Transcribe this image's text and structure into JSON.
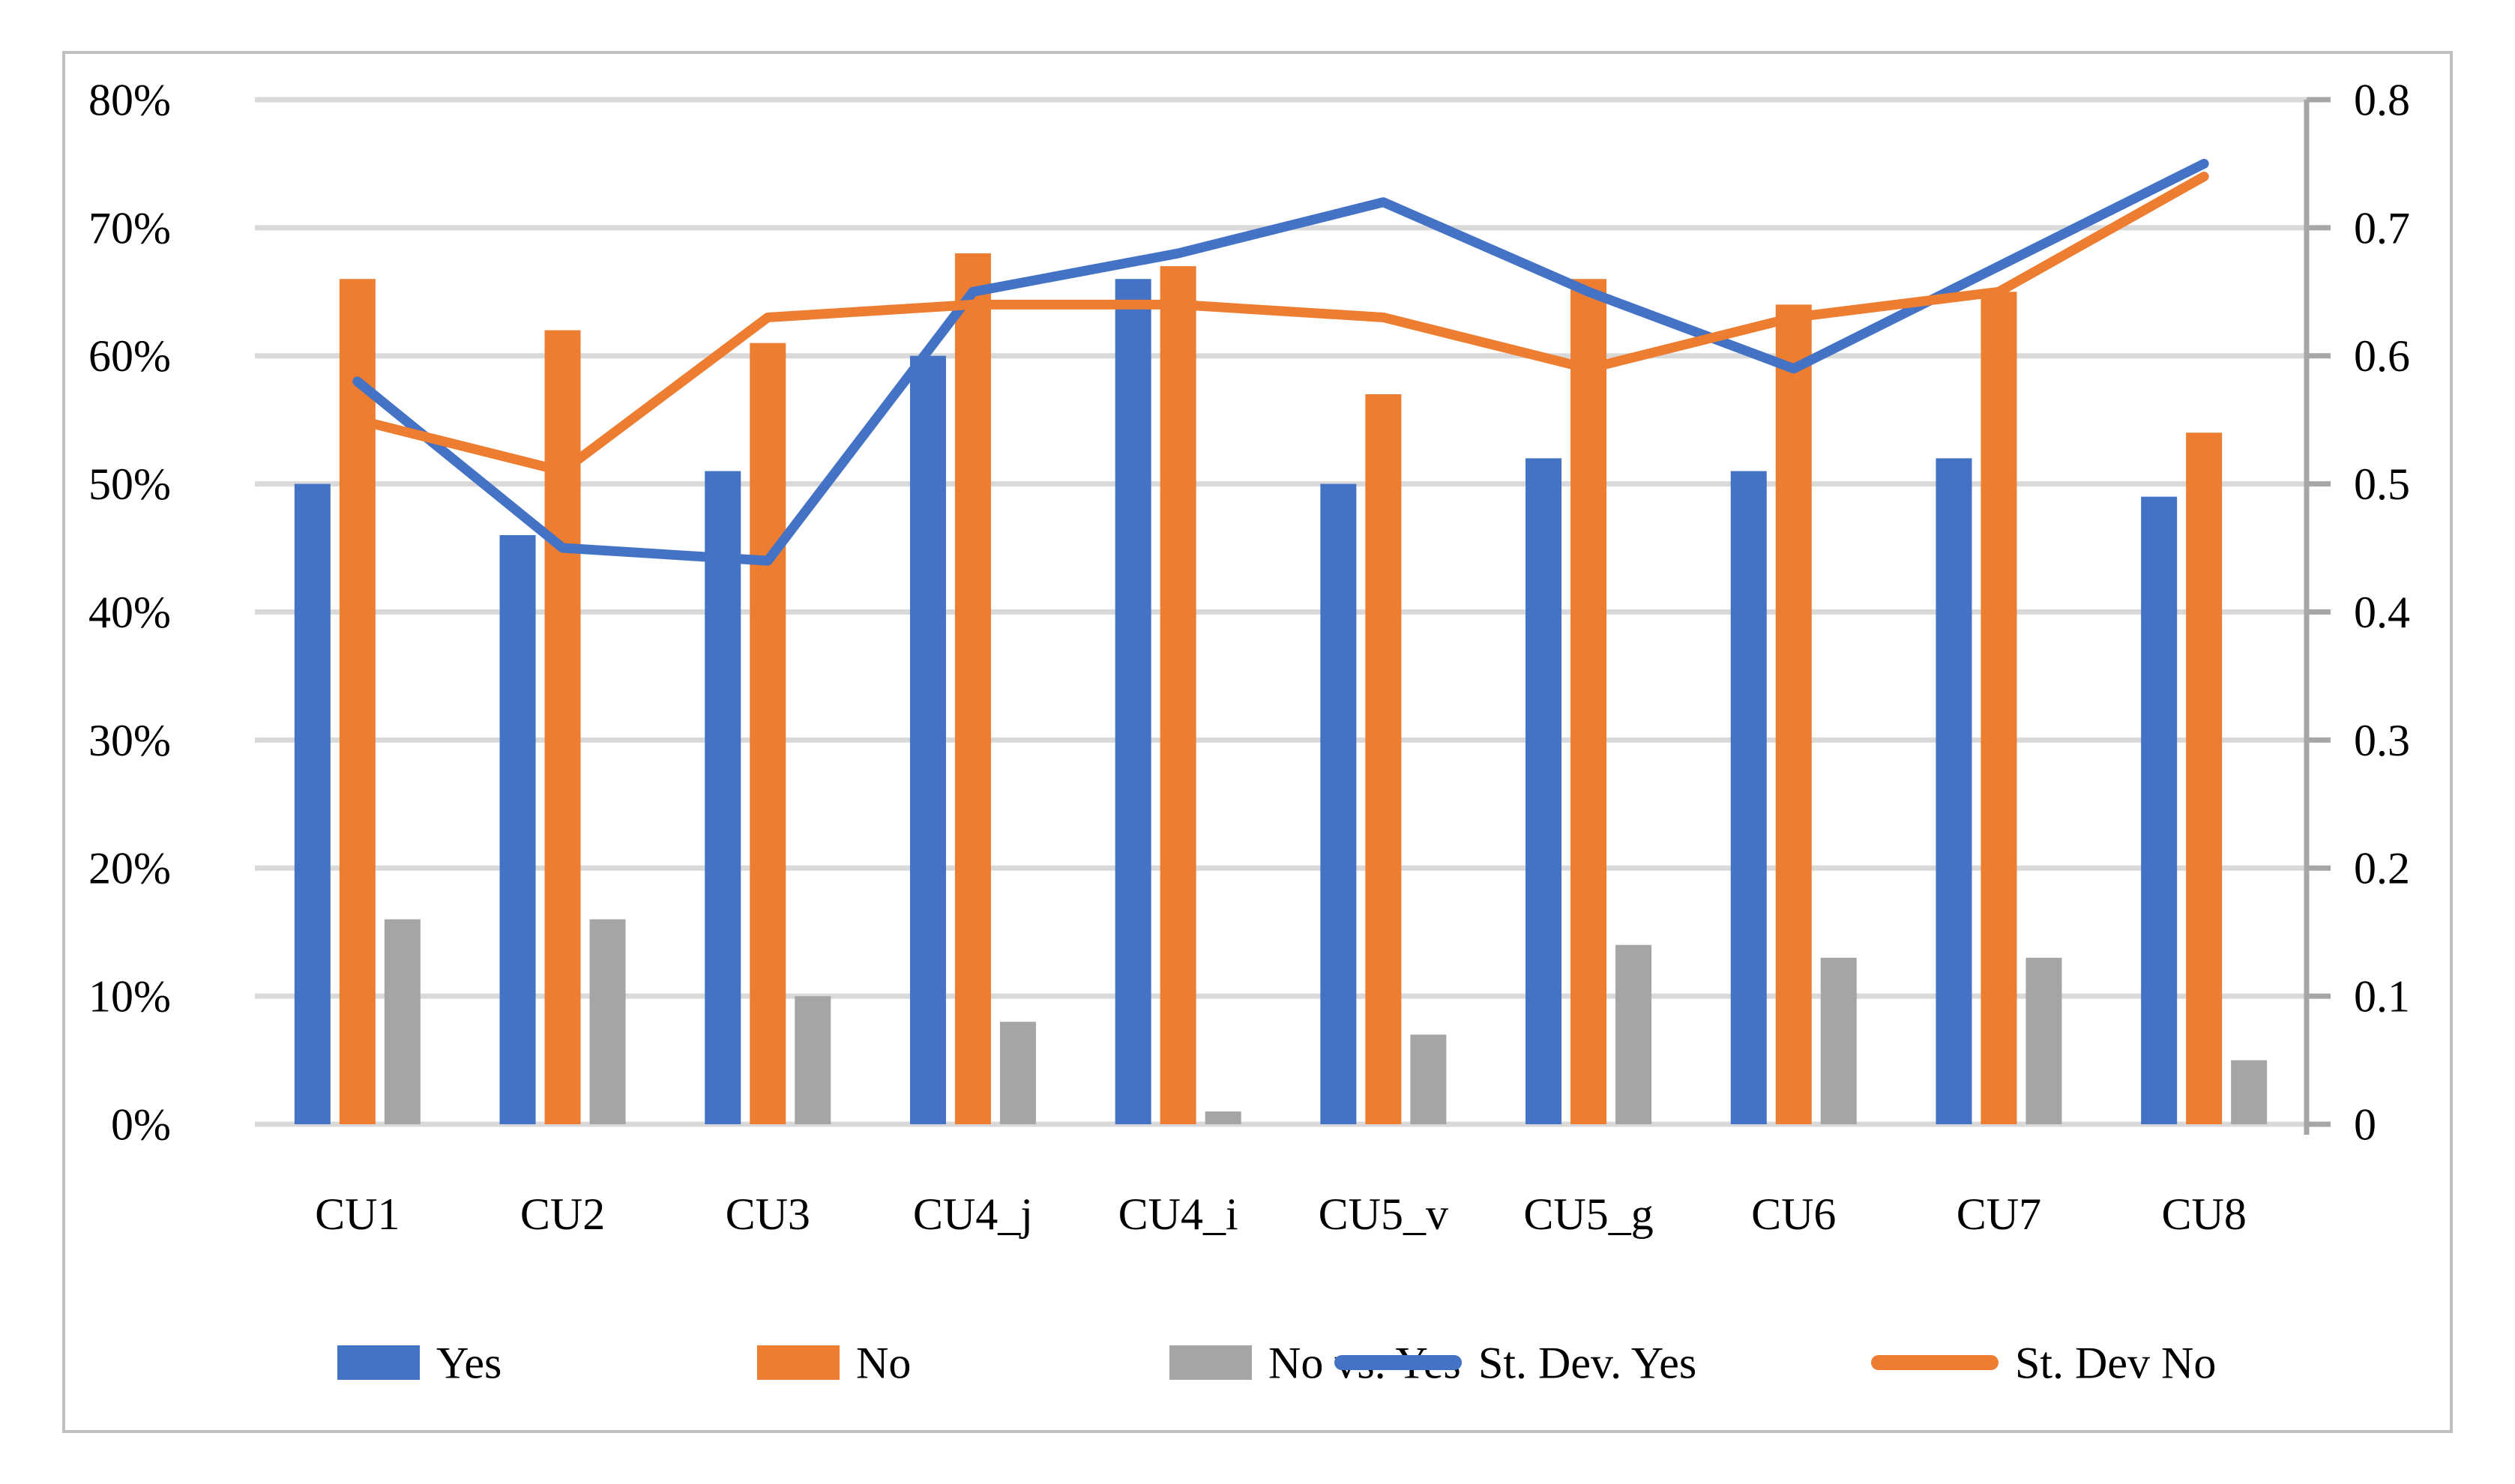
{
  "chart_data": {
    "type": "combo-bar-line",
    "title": "",
    "categories": [
      "CU1",
      "CU2",
      "CU3",
      "CU4_j",
      "CU4_i",
      "CU5_v",
      "CU5_g",
      "CU6",
      "CU7",
      "CU8"
    ],
    "bar_series": [
      {
        "name": "Yes",
        "color": "#4472C4",
        "axis": "left",
        "values": [
          50,
          46,
          51,
          60,
          66,
          50,
          52,
          51,
          52,
          49
        ]
      },
      {
        "name": "No",
        "color": "#ED7D31",
        "axis": "left",
        "values": [
          66,
          62,
          61,
          68,
          67,
          57,
          66,
          64,
          65,
          54
        ]
      },
      {
        "name": "No vs. Yes",
        "color": "#A5A5A5",
        "axis": "left",
        "values": [
          16,
          16,
          10,
          8,
          1,
          7,
          14,
          13,
          13,
          5
        ]
      }
    ],
    "line_series": [
      {
        "name": "St. Dev. Yes",
        "color": "#4472C4",
        "axis": "right",
        "values": [
          0.58,
          0.45,
          0.44,
          0.65,
          0.68,
          0.72,
          0.65,
          0.59,
          0.67,
          0.75
        ]
      },
      {
        "name": "St. Dev No",
        "color": "#ED7D31",
        "axis": "right",
        "values": [
          0.55,
          0.51,
          0.63,
          0.64,
          0.64,
          0.63,
          0.59,
          0.63,
          0.65,
          0.74
        ]
      }
    ],
    "left_axis": {
      "tick_labels": [
        "0%",
        "10%",
        "20%",
        "30%",
        "40%",
        "50%",
        "60%",
        "70%",
        "80%"
      ],
      "min": 0,
      "max": 80
    },
    "right_axis": {
      "tick_labels": [
        "0",
        "0.1",
        "0.2",
        "0.3",
        "0.4",
        "0.5",
        "0.6",
        "0.7",
        "0.8"
      ],
      "min": 0,
      "max": 0.8
    },
    "legend": {
      "position": "bottom",
      "items": [
        {
          "label": "Yes",
          "marker": "bar",
          "color": "#4472C4"
        },
        {
          "label": "No",
          "marker": "bar",
          "color": "#ED7D31"
        },
        {
          "label": "No vs. Yes",
          "marker": "bar",
          "color": "#A5A5A5"
        },
        {
          "label": "St. Dev. Yes",
          "marker": "line",
          "color": "#4472C4"
        },
        {
          "label": "St. Dev No",
          "marker": "line",
          "color": "#ED7D31"
        }
      ]
    },
    "grid": true,
    "colors": {
      "gridline": "#D9D9D9",
      "axis_line": "#A6A6A6",
      "chart_border": "#BFBFBF",
      "text": "#000000",
      "background": "#FFFFFF"
    }
  }
}
